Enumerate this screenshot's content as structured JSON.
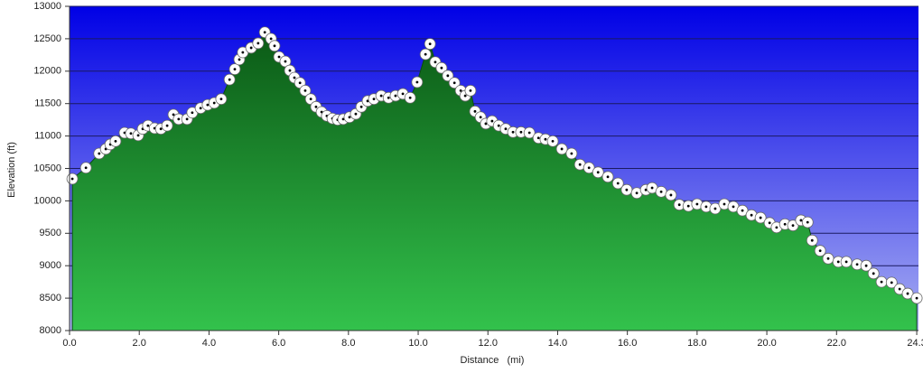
{
  "chart_data": {
    "type": "area",
    "x_label": "Distance   (mi)",
    "y_label": "Elevation (ft)",
    "x": [
      0.08,
      0.47,
      0.85,
      1.04,
      1.17,
      1.32,
      1.58,
      1.76,
      1.97,
      2.1,
      2.25,
      2.44,
      2.62,
      2.8,
      2.98,
      3.13,
      3.37,
      3.52,
      3.76,
      3.96,
      4.15,
      4.35,
      4.59,
      4.74,
      4.87,
      4.97,
      5.21,
      5.41,
      5.6,
      5.78,
      5.88,
      6.01,
      6.19,
      6.32,
      6.45,
      6.61,
      6.76,
      6.92,
      7.07,
      7.23,
      7.38,
      7.54,
      7.69,
      7.85,
      8.03,
      8.21,
      8.37,
      8.55,
      8.73,
      8.94,
      9.15,
      9.35,
      9.56,
      9.77,
      9.97,
      10.21,
      10.34,
      10.49,
      10.67,
      10.85,
      11.04,
      11.22,
      11.35,
      11.5,
      11.63,
      11.79,
      11.94,
      12.12,
      12.31,
      12.51,
      12.72,
      12.95,
      13.19,
      13.45,
      13.65,
      13.86,
      14.12,
      14.4,
      14.64,
      14.9,
      15.16,
      15.44,
      15.73,
      15.98,
      16.27,
      16.53,
      16.71,
      16.97,
      17.25,
      17.49,
      17.75,
      18.0,
      18.26,
      18.52,
      18.78,
      19.04,
      19.3,
      19.56,
      19.82,
      20.08,
      20.28,
      20.52,
      20.75,
      20.98,
      21.17,
      21.3,
      21.53,
      21.76,
      22.05,
      22.28,
      22.59,
      22.85,
      23.06,
      23.29,
      23.58,
      23.81,
      24.04,
      24.3
    ],
    "values": [
      10340,
      10510,
      10730,
      10800,
      10870,
      10920,
      11050,
      11040,
      11010,
      11110,
      11160,
      11120,
      11110,
      11160,
      11330,
      11260,
      11260,
      11360,
      11430,
      11480,
      11510,
      11570,
      11870,
      12030,
      12180,
      12290,
      12360,
      12430,
      12600,
      12500,
      12390,
      12220,
      12150,
      12010,
      11900,
      11820,
      11700,
      11570,
      11450,
      11370,
      11310,
      11270,
      11250,
      11260,
      11290,
      11340,
      11450,
      11540,
      11570,
      11620,
      11590,
      11620,
      11650,
      11590,
      11830,
      12260,
      12420,
      12140,
      12050,
      11930,
      11820,
      11700,
      11620,
      11700,
      11380,
      11290,
      11190,
      11230,
      11160,
      11110,
      11060,
      11060,
      11050,
      10970,
      10950,
      10920,
      10800,
      10730,
      10560,
      10510,
      10440,
      10370,
      10270,
      10170,
      10120,
      10170,
      10200,
      10140,
      10090,
      9940,
      9920,
      9950,
      9910,
      9880,
      9950,
      9910,
      9850,
      9780,
      9740,
      9660,
      9590,
      9640,
      9620,
      9700,
      9670,
      9390,
      9230,
      9110,
      9060,
      9060,
      9020,
      9000,
      8880,
      8750,
      8740,
      8640,
      8570,
      8500
    ],
    "color": "#1e9a32",
    "xlim": [
      0,
      24.35
    ],
    "ylim": [
      8000,
      13000
    ],
    "xticks": [
      {
        "value": 0,
        "label": "0.0"
      },
      {
        "value": 2,
        "label": "2.0"
      },
      {
        "value": 4,
        "label": "4.0"
      },
      {
        "value": 6,
        "label": "6.0"
      },
      {
        "value": 8,
        "label": "8.0"
      },
      {
        "value": 10,
        "label": "10.0"
      },
      {
        "value": 12,
        "label": "12.0"
      },
      {
        "value": 14,
        "label": "14.0"
      },
      {
        "value": 16,
        "label": "16.0"
      },
      {
        "value": 18,
        "label": "18.0"
      },
      {
        "value": 20,
        "label": "20.0"
      },
      {
        "value": 22,
        "label": "22.0"
      },
      24.3
    ],
    "yticks": [
      8000,
      8500,
      9000,
      9500,
      10000,
      10500,
      11000,
      11500,
      12000,
      12500,
      13000
    ],
    "grid": true,
    "markers": true
  }
}
